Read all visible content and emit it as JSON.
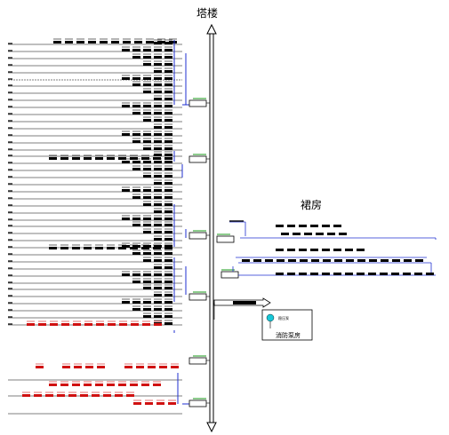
{
  "labels": {
    "tower": "塔楼",
    "podium": "裙房",
    "pump_room": "消防泵房",
    "pump_small": "稳压泵"
  },
  "colors": {
    "riser": "#1f2fd0",
    "line": "#000000",
    "accent_green": "#1a9a1a",
    "device_red": "#d01010",
    "legend_cyan": "#18c8d8"
  },
  "icons": {
    "trunk_arrow": "double-headed-arrow-icon",
    "pump": "pump-icon"
  }
}
